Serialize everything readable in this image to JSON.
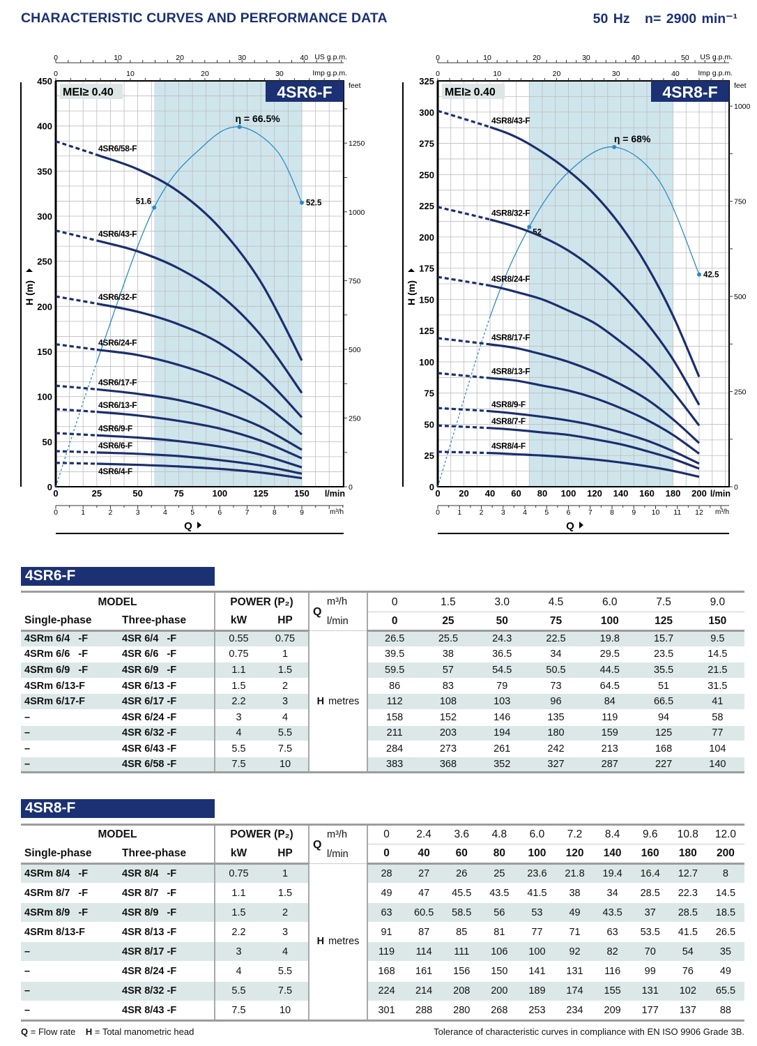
{
  "header": {
    "title": "CHARACTERISTIC CURVES AND PERFORMANCE DATA",
    "frequency": "50 Hz",
    "speed": "n= 2900 min⁻¹"
  },
  "chart_data": [
    {
      "type": "line",
      "title": "4SR6-F",
      "badge": "MEI≥ 0.40",
      "xlabel": "Q",
      "ylabel": "H (m)",
      "x_unit": "l/min",
      "x_ticks": [
        "0",
        "25",
        "50",
        "75",
        "100",
        "125",
        "150"
      ],
      "xlim": [
        0,
        175
      ],
      "ylim": [
        0,
        450
      ],
      "y_ticks": [
        "0",
        "50",
        "100",
        "150",
        "200",
        "250",
        "300",
        "350",
        "400",
        "450"
      ],
      "feet_unit": "feet",
      "feet_ticks": [
        "0",
        "250",
        "500",
        "750",
        "1000",
        "1250"
      ],
      "us_gpm_unit": "US g.p.m.",
      "us_gpm_ticks": [
        "0",
        "10",
        "20",
        "30",
        "40"
      ],
      "imp_gpm_unit": "Imp g.p.m.",
      "imp_gpm_ticks": [
        "0",
        "10",
        "20",
        "30"
      ],
      "m3h_unit": "m³/h",
      "m3h_ticks": [
        "0",
        "1",
        "2",
        "3",
        "4",
        "5",
        "6",
        "7",
        "8",
        "9"
      ],
      "grid": true,
      "shaded_range_lmin": [
        60,
        150
      ],
      "dashed_below_lmin": 25,
      "x": [
        0,
        25,
        50,
        75,
        100,
        125,
        150
      ],
      "series": [
        {
          "name": "4SR6/4-F",
          "values": [
            26.5,
            25.5,
            24.3,
            22.5,
            19.8,
            15.7,
            9.5
          ]
        },
        {
          "name": "4SR6/6-F",
          "values": [
            39.5,
            38,
            36.5,
            34,
            29.5,
            23.5,
            14.5
          ]
        },
        {
          "name": "4SR6/9-F",
          "values": [
            59.5,
            57,
            54.5,
            50.5,
            44.5,
            35.5,
            21.5
          ]
        },
        {
          "name": "4SR6/13-F",
          "values": [
            86,
            83,
            79,
            73,
            64.5,
            51,
            31.5
          ]
        },
        {
          "name": "4SR6/17-F",
          "values": [
            112,
            108,
            103,
            96,
            84,
            66.5,
            41
          ]
        },
        {
          "name": "4SR6/24-F",
          "values": [
            158,
            152,
            146,
            135,
            119,
            94,
            58
          ]
        },
        {
          "name": "4SR6/32-F",
          "values": [
            211,
            203,
            194,
            180,
            159,
            125,
            77
          ]
        },
        {
          "name": "4SR6/43-F",
          "values": [
            284,
            273,
            261,
            242,
            213,
            168,
            104
          ]
        },
        {
          "name": "4SR6/58-F",
          "values": [
            383,
            368,
            352,
            327,
            287,
            227,
            140
          ]
        }
      ],
      "efficiency": {
        "x": [
          0,
          25,
          60,
          90,
          112,
          135,
          150
        ],
        "eta_percent": [
          0,
          23,
          51.6,
          63,
          66.5,
          62,
          52.5
        ],
        "marked_points": [
          {
            "x": 60,
            "eta": 51.6,
            "label": "51.6"
          },
          {
            "x": 112,
            "eta": 66.5,
            "label": "η = 66.5%"
          },
          {
            "x": 150,
            "eta": 52.5,
            "label": "52.5"
          }
        ]
      },
      "colors": {
        "curve": "#1b2f6e",
        "efficiency": "#2b8bc3",
        "shade": "#cfe5ec",
        "badge": "#1b3173"
      }
    },
    {
      "type": "line",
      "title": "4SR8-F",
      "badge": "MEI≥ 0.40",
      "xlabel": "Q",
      "ylabel": "H (m)",
      "x_unit": "l/min",
      "x_ticks": [
        "0",
        "20",
        "40",
        "60",
        "80",
        "100",
        "120",
        "140",
        "160",
        "180",
        "200"
      ],
      "xlim": [
        0,
        223
      ],
      "ylim": [
        0,
        325
      ],
      "y_ticks": [
        "0",
        "25",
        "50",
        "75",
        "100",
        "125",
        "150",
        "175",
        "200",
        "225",
        "250",
        "275",
        "300",
        "325"
      ],
      "feet_unit": "feet",
      "feet_ticks": [
        "0",
        "250",
        "500",
        "750",
        "1000"
      ],
      "us_gpm_unit": "US g.p.m.",
      "us_gpm_ticks": [
        "0",
        "10",
        "20",
        "30",
        "40",
        "50"
      ],
      "imp_gpm_unit": "Imp g.p.m.",
      "imp_gpm_ticks": [
        "0",
        "10",
        "20",
        "30",
        "40"
      ],
      "m3h_unit": "m³/h",
      "m3h_ticks": [
        "0",
        "1",
        "2",
        "3",
        "4",
        "5",
        "6",
        "7",
        "8",
        "9",
        "10",
        "11",
        "12"
      ],
      "grid": true,
      "shaded_range_lmin": [
        70,
        180
      ],
      "dashed_below_lmin": 40,
      "x": [
        0,
        40,
        60,
        80,
        100,
        120,
        140,
        160,
        180,
        200
      ],
      "series": [
        {
          "name": "4SR8/4-F",
          "values": [
            28,
            27,
            26,
            25,
            23.6,
            21.8,
            19.4,
            16.4,
            12.7,
            8
          ]
        },
        {
          "name": "4SR8/7-F",
          "values": [
            49,
            47,
            45.5,
            43.5,
            41.5,
            38,
            34,
            28.5,
            22.3,
            14.5
          ]
        },
        {
          "name": "4SR8/9-F",
          "values": [
            63,
            60.5,
            58.5,
            56,
            53,
            49,
            43.5,
            37,
            28.5,
            18.5
          ]
        },
        {
          "name": "4SR8/13-F",
          "values": [
            91,
            87,
            85,
            81,
            77,
            71,
            63,
            53.5,
            41.5,
            26.5
          ]
        },
        {
          "name": "4SR8/17-F",
          "values": [
            119,
            114,
            111,
            106,
            100,
            92,
            82,
            70,
            54,
            35
          ]
        },
        {
          "name": "4SR8/24-F",
          "values": [
            168,
            161,
            156,
            150,
            141,
            131,
            116,
            99,
            76,
            49
          ]
        },
        {
          "name": "4SR8/32-F",
          "values": [
            224,
            214,
            208,
            200,
            189,
            174,
            155,
            131,
            102,
            65.5
          ]
        },
        {
          "name": "4SR8/43-F",
          "values": [
            301,
            288,
            280,
            268,
            253,
            234,
            209,
            177,
            137,
            88
          ]
        }
      ],
      "efficiency": {
        "x": [
          0,
          40,
          70,
          100,
          135,
          170,
          200
        ],
        "eta_percent": [
          0,
          34,
          52,
          63,
          68,
          61,
          42.5
        ],
        "marked_points": [
          {
            "x": 70,
            "eta": 52,
            "label": "52"
          },
          {
            "x": 135,
            "eta": 68,
            "label": "η = 68%"
          },
          {
            "x": 200,
            "eta": 42.5,
            "label": "42.5"
          }
        ]
      },
      "colors": {
        "curve": "#1b2f6e",
        "efficiency": "#2b8bc3",
        "shade": "#cfe5ec",
        "badge": "#1b3173"
      }
    }
  ],
  "tables": [
    {
      "title": "4SR6-F",
      "headers": {
        "model": "MODEL",
        "single": "Single-phase",
        "three": "Three-phase",
        "power": "POWER (P₂)",
        "kw": "kW",
        "hp": "HP",
        "q": "Q",
        "m3h": "m³/h",
        "lmin": "l/min",
        "h": "H",
        "metres": "metres"
      },
      "m3h": [
        "0",
        "1.5",
        "3.0",
        "4.5",
        "6.0",
        "7.5",
        "9.0"
      ],
      "lmin": [
        "0",
        "25",
        "50",
        "75",
        "100",
        "125",
        "150"
      ],
      "rows": [
        {
          "single": "4SRm 6/4   -F",
          "three": "4SR 6/4   -F",
          "kw": "0.55",
          "hp": "0.75",
          "h": [
            "26.5",
            "25.5",
            "24.3",
            "22.5",
            "19.8",
            "15.7",
            "9.5"
          ]
        },
        {
          "single": "4SRm 6/6   -F",
          "three": "4SR 6/6   -F",
          "kw": "0.75",
          "hp": "1",
          "h": [
            "39.5",
            "38",
            "36.5",
            "34",
            "29.5",
            "23.5",
            "14.5"
          ]
        },
        {
          "single": "4SRm 6/9   -F",
          "three": "4SR 6/9   -F",
          "kw": "1.1",
          "hp": "1.5",
          "h": [
            "59.5",
            "57",
            "54.5",
            "50.5",
            "44.5",
            "35.5",
            "21.5"
          ]
        },
        {
          "single": "4SRm 6/13-F",
          "three": "4SR 6/13 -F",
          "kw": "1.5",
          "hp": "2",
          "h": [
            "86",
            "83",
            "79",
            "73",
            "64.5",
            "51",
            "31.5"
          ]
        },
        {
          "single": "4SRm 6/17-F",
          "three": "4SR 6/17 -F",
          "kw": "2.2",
          "hp": "3",
          "h": [
            "112",
            "108",
            "103",
            "96",
            "84",
            "66.5",
            "41"
          ]
        },
        {
          "single": "–",
          "three": "4SR 6/24 -F",
          "kw": "3",
          "hp": "4",
          "h": [
            "158",
            "152",
            "146",
            "135",
            "119",
            "94",
            "58"
          ]
        },
        {
          "single": "–",
          "three": "4SR 6/32 -F",
          "kw": "4",
          "hp": "5.5",
          "h": [
            "211",
            "203",
            "194",
            "180",
            "159",
            "125",
            "77"
          ]
        },
        {
          "single": "–",
          "three": "4SR 6/43 -F",
          "kw": "5.5",
          "hp": "7.5",
          "h": [
            "284",
            "273",
            "261",
            "242",
            "213",
            "168",
            "104"
          ]
        },
        {
          "single": "–",
          "three": "4SR 6/58 -F",
          "kw": "7.5",
          "hp": "10",
          "h": [
            "383",
            "368",
            "352",
            "327",
            "287",
            "227",
            "140"
          ]
        }
      ]
    },
    {
      "title": "4SR8-F",
      "headers": {
        "model": "MODEL",
        "single": "Single-phase",
        "three": "Three-phase",
        "power": "POWER (P₂)",
        "kw": "kW",
        "hp": "HP",
        "q": "Q",
        "m3h": "m³/h",
        "lmin": "l/min",
        "h": "H",
        "metres": "metres"
      },
      "m3h": [
        "0",
        "2.4",
        "3.6",
        "4.8",
        "6.0",
        "7.2",
        "8.4",
        "9.6",
        "10.8",
        "12.0"
      ],
      "lmin": [
        "0",
        "40",
        "60",
        "80",
        "100",
        "120",
        "140",
        "160",
        "180",
        "200"
      ],
      "rows": [
        {
          "single": "4SRm 8/4   -F",
          "three": "4SR 8/4   -F",
          "kw": "0.75",
          "hp": "1",
          "h": [
            "28",
            "27",
            "26",
            "25",
            "23.6",
            "21.8",
            "19.4",
            "16.4",
            "12.7",
            "8"
          ]
        },
        {
          "single": "4SRm 8/7   -F",
          "three": "4SR 8/7   -F",
          "kw": "1.1",
          "hp": "1.5",
          "h": [
            "49",
            "47",
            "45.5",
            "43.5",
            "41.5",
            "38",
            "34",
            "28.5",
            "22.3",
            "14.5"
          ]
        },
        {
          "single": "4SRm 8/9   -F",
          "three": "4SR 8/9   -F",
          "kw": "1.5",
          "hp": "2",
          "h": [
            "63",
            "60.5",
            "58.5",
            "56",
            "53",
            "49",
            "43.5",
            "37",
            "28.5",
            "18.5"
          ]
        },
        {
          "single": "4SRm 8/13-F",
          "three": "4SR 8/13 -F",
          "kw": "2.2",
          "hp": "3",
          "h": [
            "91",
            "87",
            "85",
            "81",
            "77",
            "71",
            "63",
            "53.5",
            "41.5",
            "26.5"
          ]
        },
        {
          "single": "–",
          "three": "4SR 8/17 -F",
          "kw": "3",
          "hp": "4",
          "h": [
            "119",
            "114",
            "111",
            "106",
            "100",
            "92",
            "82",
            "70",
            "54",
            "35"
          ]
        },
        {
          "single": "–",
          "three": "4SR 8/24 -F",
          "kw": "4",
          "hp": "5.5",
          "h": [
            "168",
            "161",
            "156",
            "150",
            "141",
            "131",
            "116",
            "99",
            "76",
            "49"
          ]
        },
        {
          "single": "–",
          "three": "4SR 8/32 -F",
          "kw": "5.5",
          "hp": "7.5",
          "h": [
            "224",
            "214",
            "208",
            "200",
            "189",
            "174",
            "155",
            "131",
            "102",
            "65.5"
          ]
        },
        {
          "single": "–",
          "three": "4SR 8/43 -F",
          "kw": "7.5",
          "hp": "10",
          "h": [
            "301",
            "288",
            "280",
            "268",
            "253",
            "234",
            "209",
            "177",
            "137",
            "88"
          ]
        }
      ]
    }
  ],
  "footer": {
    "q_symbol": "Q",
    "q_legend": " = Flow rate",
    "h_symbol": "H",
    "h_legend": " = Total manometric head",
    "tolerance": "Tolerance of characteristic curves in compliance with EN ISO 9906 Grade 3B."
  }
}
